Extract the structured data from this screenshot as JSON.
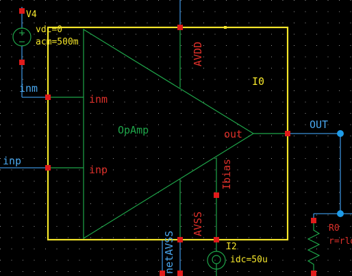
{
  "schematic": {
    "instance_name": "I0",
    "cell_name": "OpAmp",
    "pins": {
      "inm": "inm",
      "inp": "inp",
      "out": "out",
      "avdd": "AVDD",
      "avss": "AVSS",
      "ibias": "Ibias"
    },
    "nets": {
      "inm": "inm",
      "inp": "inp",
      "out": "OUT",
      "avss": "netAVSS"
    },
    "sources": {
      "v4": {
        "name": "V4",
        "vdc": "vdc=0",
        "acm": "acm=500m"
      },
      "i2": {
        "name": "I2",
        "idc": "idc=50u"
      }
    },
    "resistor": {
      "name": "R0",
      "r": "r=rlo"
    },
    "colors": {
      "background": "#000000",
      "wire": "#3a8fd8",
      "symbol": "#1fa64a",
      "pin_text": "#e0302a",
      "selection": "#f5e62a",
      "pin_square": "#e01b1b",
      "net_text": "#4aa8f0",
      "dot": "#1e9be8"
    }
  }
}
